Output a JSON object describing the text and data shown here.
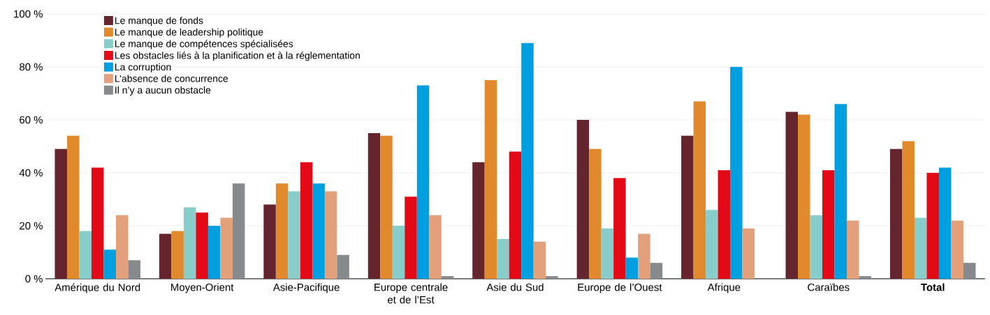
{
  "chart_data": {
    "type": "bar",
    "categories": [
      "Amérique du Nord",
      "Moyen-Orient",
      "Asie-Pacifique",
      "Europe centrale et de l’Est",
      "Asie du Sud",
      "Europe de l’Ouest",
      "Afrique",
      "Caraïbes",
      "**Total**"
    ],
    "series": [
      {
        "name": "Le manque de fonds",
        "color": "#65252f",
        "values": [
          49,
          17,
          28,
          55,
          44,
          60,
          54,
          63,
          49
        ]
      },
      {
        "name": "Le manque de leadership politique",
        "color": "#e0892d",
        "values": [
          54,
          18,
          36,
          54,
          75,
          49,
          67,
          62,
          52
        ]
      },
      {
        "name": "Le manque de compétences spécialisées",
        "color": "#89cdca",
        "values": [
          18,
          27,
          33,
          20,
          15,
          19,
          26,
          24,
          23
        ]
      },
      {
        "name": "Les obstacles liés à la planification et à la réglementation",
        "color": "#e30916",
        "values": [
          42,
          25,
          44,
          31,
          48,
          38,
          41,
          41,
          40
        ]
      },
      {
        "name": "La corruption",
        "color": "#00a0e0",
        "values": [
          11,
          20,
          36,
          73,
          89,
          8,
          80,
          66,
          42
        ]
      },
      {
        "name": "L’absence de concurrence",
        "color": "#e3a17b",
        "values": [
          24,
          23,
          33,
          24,
          14,
          17,
          19,
          22,
          22
        ]
      },
      {
        "name": "Il n’y a aucun obstacle",
        "color": "#878a8c",
        "values": [
          7,
          36,
          9,
          1,
          1,
          6,
          0,
          1,
          6
        ]
      }
    ],
    "ylim": [
      0,
      100
    ],
    "yticks": [
      {
        "value": 0,
        "label": "0 %"
      },
      {
        "value": 20,
        "label": "20 %"
      },
      {
        "value": 40,
        "label": "40 %"
      },
      {
        "value": 60,
        "label": "60 %"
      },
      {
        "value": 80,
        "label": "80 %"
      },
      {
        "value": 100,
        "label": "100 %"
      }
    ],
    "grid": "y",
    "legend": "top left"
  }
}
